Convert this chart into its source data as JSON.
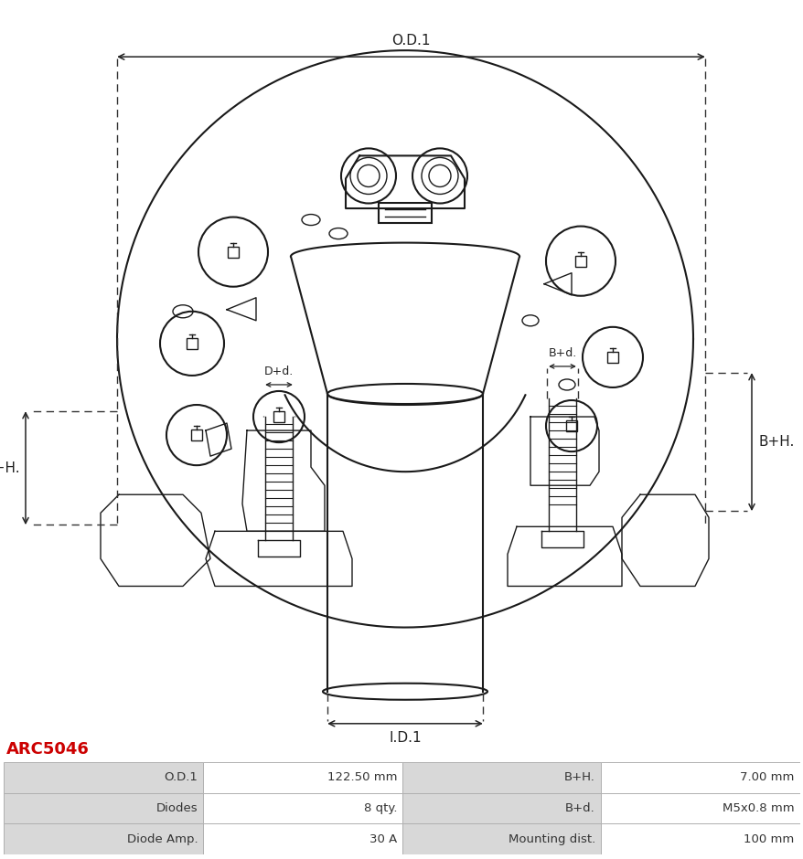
{
  "title": "ARC5046",
  "title_color": "#cc0000",
  "bg_color": "#ffffff",
  "table_rows": [
    [
      "O.D.1",
      "122.50 mm",
      "B+H.",
      "7.00 mm"
    ],
    [
      "Diodes",
      "8 qty.",
      "B+d.",
      "M5x0.8 mm"
    ],
    [
      "Diode Amp.",
      "30 A",
      "Mounting dist.",
      "100 mm"
    ]
  ],
  "dim_labels": {
    "OD1": "O.D.1",
    "ID1": "I.D.1",
    "BH": "B+H.",
    "Bd": "B+d.",
    "DH": "D+H.",
    "Dd": "D+d."
  },
  "header_bg": "#d8d8d8",
  "row_bg": "#ffffff",
  "table_text_color": "#333333",
  "line_color": "#1a1a1a",
  "dashed_color": "#333333",
  "dim_arrow_color": "#222222",
  "lw_main": 1.5,
  "lw_thin": 1.0,
  "lw_dim": 1.1,
  "fontsize_dim": 11,
  "fontsize_small": 9
}
